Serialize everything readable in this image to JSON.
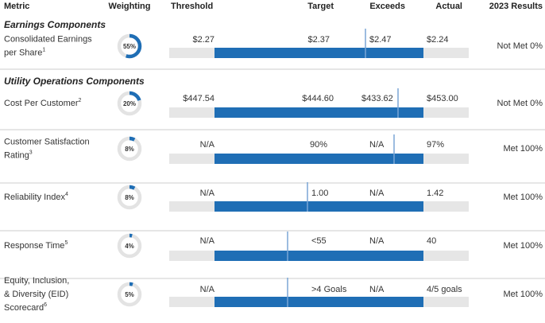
{
  "header": [
    "Metric",
    "Weighting",
    "Threshold",
    "Target",
    "Exceeds",
    "Actual",
    "2023 Results"
  ],
  "sections": [
    {
      "title": "Earnings Components",
      "rows": [
        {
          "name_lines": [
            "Consolidated Earnings",
            "per Share"
          ],
          "note": "1",
          "weighting": {
            "value": 55,
            "label": "55%"
          },
          "threshold": "$2.27",
          "target": "$2.37",
          "exceeds": "$2.47",
          "actual": "$2.24",
          "result": "Not Met 0%"
        }
      ]
    },
    {
      "title": "Utility Operations Components",
      "rows": [
        {
          "name_lines": [
            "Cost Per Customer"
          ],
          "note": "2",
          "weighting": {
            "value": 20,
            "label": "20%"
          },
          "threshold": "$447.54",
          "target": "$444.60",
          "exceeds": "$433.62",
          "actual": "$453.00",
          "result": "Not Met 0%"
        },
        {
          "name_lines": [
            "Customer Satisfaction",
            "Rating"
          ],
          "note": "3",
          "weighting": {
            "value": 8,
            "label": "8%"
          },
          "threshold": "N/A",
          "target": "90%",
          "exceeds": "N/A",
          "actual": "97%",
          "result": "Met 100%"
        },
        {
          "name_lines": [
            "Reliability Index"
          ],
          "note": "4",
          "weighting": {
            "value": 8,
            "label": "8%"
          },
          "threshold": "N/A",
          "target": "1.00",
          "exceeds": "N/A",
          "actual": "1.42",
          "result": "Met 100%"
        },
        {
          "name_lines": [
            "Response Time"
          ],
          "note": "5",
          "weighting": {
            "value": 4,
            "label": "4%"
          },
          "threshold": "N/A",
          "target": "<55",
          "exceeds": "N/A",
          "actual": "40",
          "result": "Met 100%"
        },
        {
          "name_lines": [
            "Equity, Inclusion,",
            "& Diversity (EID)",
            "Scorecard"
          ],
          "note": "6",
          "weighting": {
            "value": 5,
            "label": "5%"
          },
          "threshold": "N/A",
          "target": ">4 Goals",
          "exceeds": "N/A",
          "actual": "4/5 goals",
          "result": "Met 100%"
        }
      ]
    }
  ]
}
